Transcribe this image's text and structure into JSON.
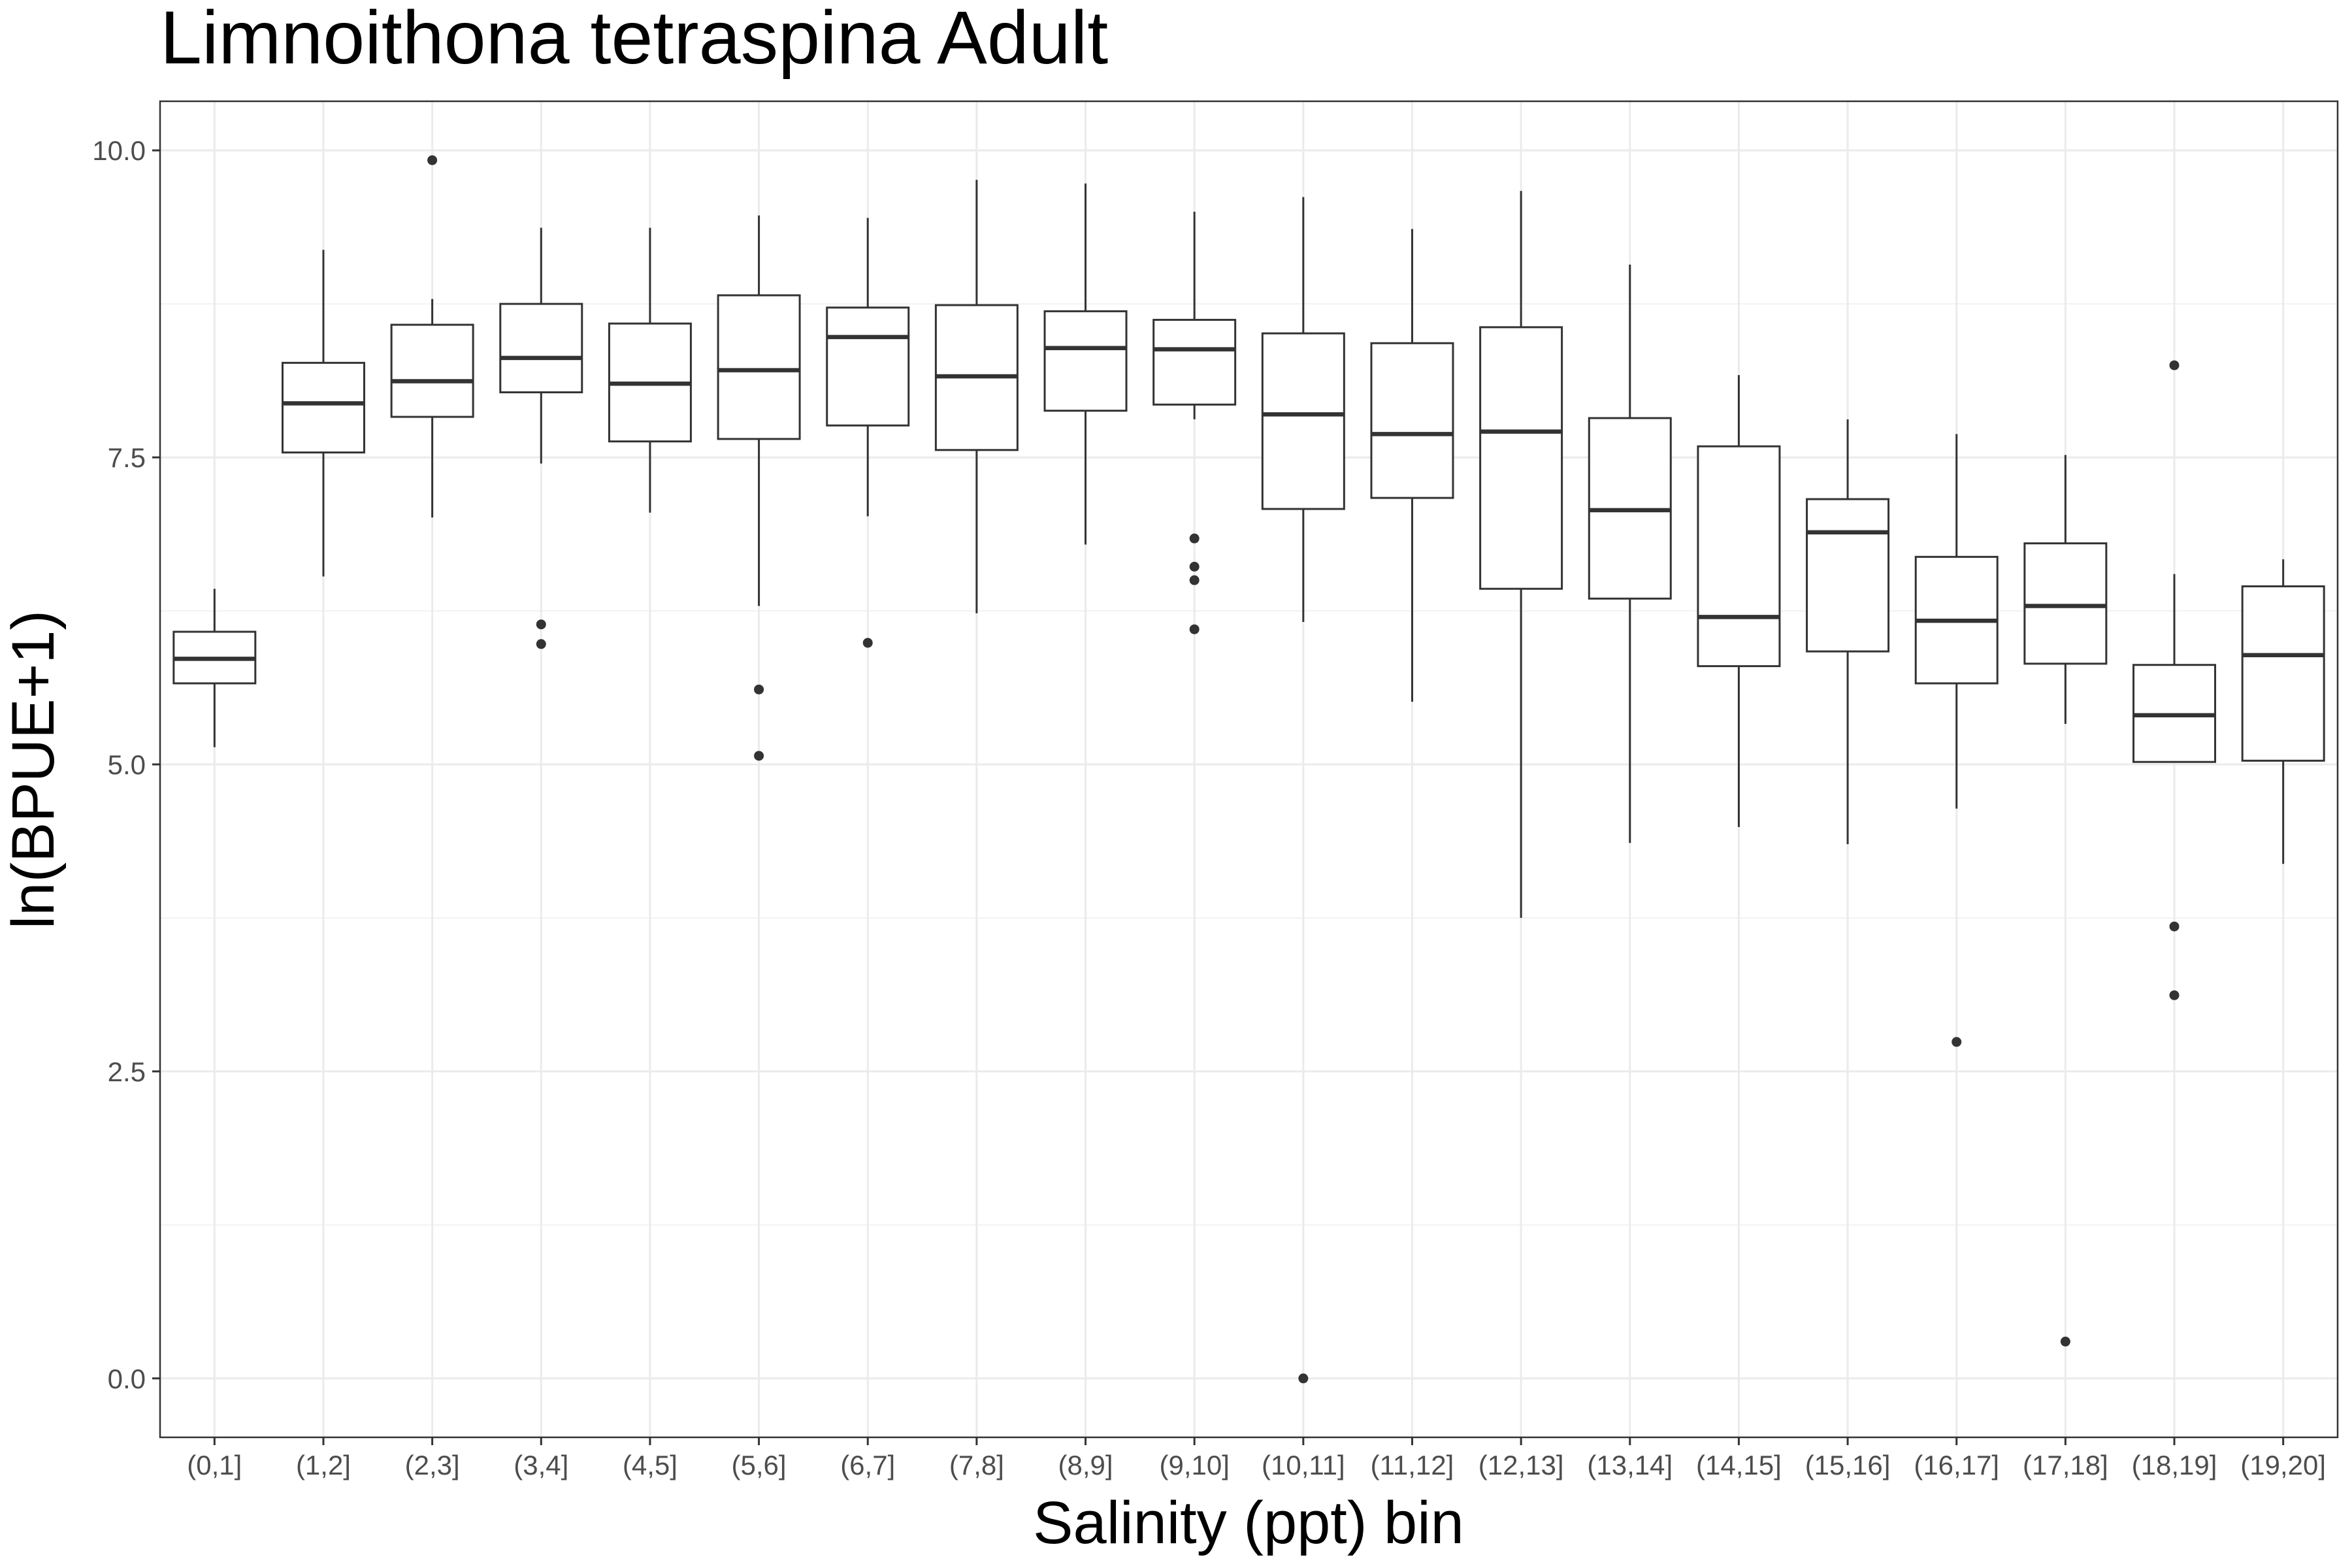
{
  "chart_data": {
    "type": "boxplot",
    "title": "Limnoithona tetraspina Adult",
    "xlabel": "Salinity (ppt) bin",
    "ylabel": "ln(BPUE+1)",
    "ylim": [
      -0.48,
      10.4
    ],
    "yticks": [
      0.0,
      2.5,
      5.0,
      7.5,
      10.0
    ],
    "ytick_labels": [
      "0.0",
      "2.5",
      "5.0",
      "7.5",
      "10.0"
    ],
    "grid": true,
    "categories": [
      "(0,1]",
      "(1,2]",
      "(2,3]",
      "(3,4]",
      "(4,5]",
      "(5,6]",
      "(6,7]",
      "(7,8]",
      "(8,9]",
      "(9,10]",
      "(10,11]",
      "(11,12]",
      "(12,13]",
      "(13,14]",
      "(14,15]",
      "(15,16]",
      "(16,17]",
      "(17,18]",
      "(18,19]",
      "(19,20]"
    ],
    "boxes": [
      {
        "whisker_low": 5.14,
        "q1": 5.66,
        "median": 5.86,
        "q3": 6.08,
        "whisker_high": 6.43,
        "outliers": []
      },
      {
        "whisker_low": 6.53,
        "q1": 7.54,
        "median": 7.94,
        "q3": 8.27,
        "whisker_high": 9.19,
        "outliers": []
      },
      {
        "whisker_low": 7.01,
        "q1": 7.83,
        "median": 8.12,
        "q3": 8.58,
        "whisker_high": 8.79,
        "outliers": [
          9.92
        ]
      },
      {
        "whisker_low": 7.45,
        "q1": 8.03,
        "median": 8.31,
        "q3": 8.75,
        "whisker_high": 9.37,
        "outliers": [
          6.14,
          5.98
        ]
      },
      {
        "whisker_low": 7.05,
        "q1": 7.63,
        "median": 8.1,
        "q3": 8.59,
        "whisker_high": 9.37,
        "outliers": []
      },
      {
        "whisker_low": 6.29,
        "q1": 7.65,
        "median": 8.21,
        "q3": 8.82,
        "whisker_high": 9.47,
        "outliers": [
          5.61,
          5.07
        ]
      },
      {
        "whisker_low": 7.02,
        "q1": 7.76,
        "median": 8.48,
        "q3": 8.72,
        "whisker_high": 9.45,
        "outliers": [
          5.99
        ]
      },
      {
        "whisker_low": 6.23,
        "q1": 7.56,
        "median": 8.16,
        "q3": 8.74,
        "whisker_high": 9.76,
        "outliers": []
      },
      {
        "whisker_low": 6.79,
        "q1": 7.88,
        "median": 8.39,
        "q3": 8.69,
        "whisker_high": 9.73,
        "outliers": []
      },
      {
        "whisker_low": 7.81,
        "q1": 7.93,
        "median": 8.38,
        "q3": 8.62,
        "whisker_high": 9.5,
        "outliers": [
          6.84,
          6.61,
          6.5,
          6.1
        ]
      },
      {
        "whisker_low": 6.16,
        "q1": 7.08,
        "median": 7.85,
        "q3": 8.51,
        "whisker_high": 9.62,
        "outliers": [
          0.0
        ]
      },
      {
        "whisker_low": 5.51,
        "q1": 7.17,
        "median": 7.69,
        "q3": 8.43,
        "whisker_high": 9.36,
        "outliers": []
      },
      {
        "whisker_low": 3.75,
        "q1": 6.43,
        "median": 7.71,
        "q3": 8.56,
        "whisker_high": 9.67,
        "outliers": []
      },
      {
        "whisker_low": 4.36,
        "q1": 6.35,
        "median": 7.07,
        "q3": 7.82,
        "whisker_high": 9.07,
        "outliers": []
      },
      {
        "whisker_low": 4.49,
        "q1": 5.8,
        "median": 6.2,
        "q3": 7.59,
        "whisker_high": 8.17,
        "outliers": []
      },
      {
        "whisker_low": 4.35,
        "q1": 5.92,
        "median": 6.89,
        "q3": 7.16,
        "whisker_high": 7.81,
        "outliers": []
      },
      {
        "whisker_low": 4.64,
        "q1": 5.66,
        "median": 6.17,
        "q3": 6.69,
        "whisker_high": 7.69,
        "outliers": [
          2.74
        ]
      },
      {
        "whisker_low": 5.33,
        "q1": 5.82,
        "median": 6.29,
        "q3": 6.8,
        "whisker_high": 7.52,
        "outliers": [
          0.3
        ]
      },
      {
        "whisker_low": 5.02,
        "q1": 5.02,
        "median": 5.4,
        "q3": 5.81,
        "whisker_high": 6.55,
        "outliers": [
          8.25,
          3.68,
          3.12
        ]
      },
      {
        "whisker_low": 4.19,
        "q1": 5.03,
        "median": 5.89,
        "q3": 6.45,
        "whisker_high": 6.67,
        "outliers": []
      }
    ]
  }
}
